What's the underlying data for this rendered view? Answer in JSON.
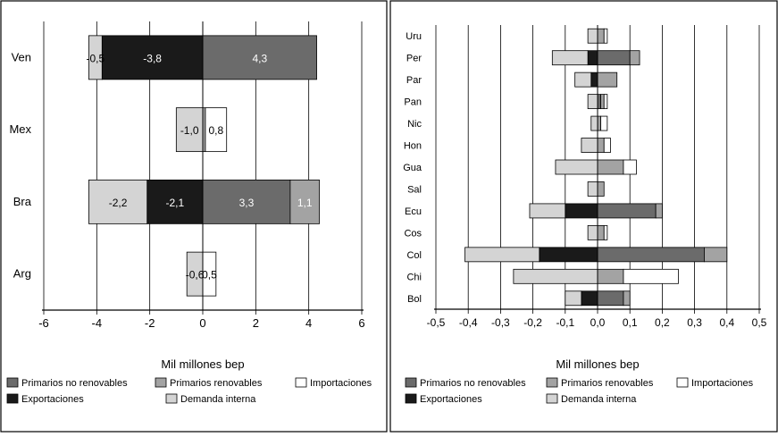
{
  "chart_data": [
    {
      "type": "bar",
      "orientation": "horizontal",
      "stacked": "diverging",
      "categories": [
        "Ven",
        "Mex",
        "Bra",
        "Arg"
      ],
      "series": [
        {
          "name": "Primarios no renovables",
          "values": [
            4.3,
            0.0,
            3.3,
            0.0
          ],
          "labels": [
            "4,3",
            "",
            "3,3",
            ""
          ]
        },
        {
          "name": "Primarios renovables",
          "values": [
            0.0,
            0.1,
            1.1,
            0.0
          ],
          "labels": [
            "",
            "",
            "1,1",
            ""
          ]
        },
        {
          "name": "Importaciones",
          "values": [
            0.0,
            0.8,
            0.0,
            0.5
          ],
          "labels": [
            "",
            "0,8",
            "",
            "0,5"
          ]
        },
        {
          "name": "Exportaciones",
          "values": [
            -3.8,
            0.0,
            -2.1,
            0.0
          ],
          "labels": [
            "-3,8",
            "",
            "-2,1",
            ""
          ]
        },
        {
          "name": "Demanda interna",
          "values": [
            -0.5,
            -1.0,
            -2.2,
            -0.6
          ],
          "labels": [
            "-0,5",
            "-1,0",
            "-2,2",
            "-0,6"
          ]
        }
      ],
      "xlabel": "Mil millones bep",
      "ylabel": "",
      "xlim": [
        -6,
        6
      ],
      "xticks": [
        "-6",
        "-4",
        "-2",
        "0",
        "2",
        "4",
        "6"
      ],
      "grid": "vertical",
      "legend": "bottom"
    },
    {
      "type": "bar",
      "orientation": "horizontal",
      "stacked": "diverging",
      "categories": [
        "Uru",
        "Per",
        "Par",
        "Pan",
        "Nic",
        "Hon",
        "Gua",
        "Sal",
        "Ecu",
        "Cos",
        "Col",
        "Chi",
        "Bol"
      ],
      "series": [
        {
          "name": "Primarios no renovables",
          "values": [
            0.0,
            0.1,
            0.0,
            0.01,
            0.0,
            0.0,
            0.0,
            0.0,
            0.18,
            0.0,
            0.33,
            0.0,
            0.08
          ]
        },
        {
          "name": "Primarios renovables",
          "values": [
            0.02,
            0.03,
            0.06,
            0.01,
            0.01,
            0.02,
            0.08,
            0.02,
            0.02,
            0.02,
            0.07,
            0.08,
            0.02
          ]
        },
        {
          "name": "Importaciones",
          "values": [
            0.01,
            0.0,
            0.0,
            0.01,
            0.02,
            0.02,
            0.04,
            0.0,
            0.0,
            0.01,
            0.0,
            0.17,
            0.0
          ]
        },
        {
          "name": "Exportaciones",
          "values": [
            0.0,
            -0.03,
            -0.02,
            0.0,
            0.0,
            0.0,
            0.0,
            0.0,
            -0.1,
            0.0,
            -0.18,
            0.0,
            -0.05
          ]
        },
        {
          "name": "Demanda interna",
          "values": [
            -0.03,
            -0.11,
            -0.05,
            -0.03,
            -0.02,
            -0.05,
            -0.13,
            -0.03,
            -0.11,
            -0.03,
            -0.23,
            -0.26,
            -0.05
          ]
        }
      ],
      "xlabel": "Mil millones bep",
      "ylabel": "",
      "xlim": [
        -0.5,
        0.5
      ],
      "xticks": [
        "-0,5",
        "-0,4",
        "-0,3",
        "-0,2",
        "-0,1",
        "0,0",
        "0,1",
        "0,2",
        "0,3",
        "0,4",
        "0,5"
      ],
      "grid": "vertical",
      "legend": "bottom"
    }
  ],
  "legend": {
    "items": [
      {
        "label": "Primarios no renovables",
        "color": "#6b6b6b"
      },
      {
        "label": "Primarios renovables",
        "color": "#a3a3a3"
      },
      {
        "label": "Importaciones",
        "color": "#ffffff"
      },
      {
        "label": "Exportaciones",
        "color": "#1a1a1a"
      },
      {
        "label": "Demanda interna",
        "color": "#d4d4d4"
      }
    ]
  },
  "colors": {
    "Primarios no renovables": "#6b6b6b",
    "Primarios renovables": "#a3a3a3",
    "Importaciones": "#ffffff",
    "Exportaciones": "#1a1a1a",
    "Demanda interna": "#d4d4d4"
  }
}
